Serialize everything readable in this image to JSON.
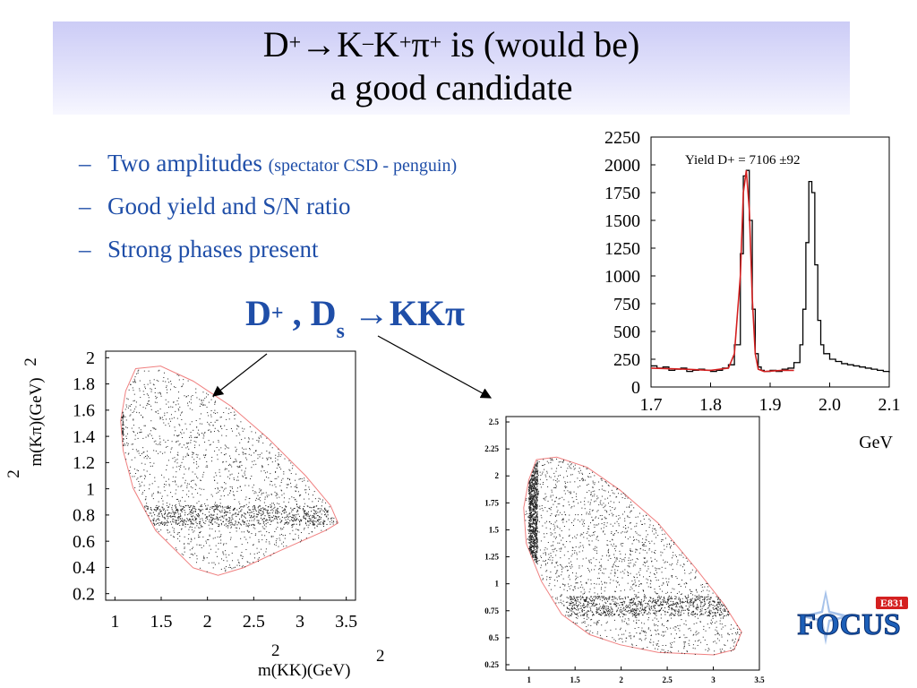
{
  "slide": {
    "title_line1_parts": [
      "D",
      "+",
      "→K",
      "–",
      "K",
      "+",
      "π",
      "+",
      " is  (would be)"
    ],
    "title_line2": "a good candidate",
    "bullets": [
      {
        "dash": "–",
        "text": "Two amplitudes ",
        "small": "(spectator CSD - penguin)"
      },
      {
        "dash": "–",
        "text": "Good yield and S/N ratio",
        "small": ""
      },
      {
        "dash": "–",
        "text": "Strong phases present",
        "small": ""
      }
    ],
    "decay_label": {
      "main1": "D",
      "sup": "+",
      "main2": " , D",
      "sub": "s",
      "main3": " →KKπ"
    }
  },
  "colors": {
    "title_band": "#d4d4f8",
    "bullet_text": "#1f4ea8",
    "fit_curve": "#d42020",
    "boundary": "#f08080",
    "logo_blue": "#1c5fb8",
    "logo_red": "#d42020"
  },
  "chart_data": [
    {
      "type": "line",
      "annotation": "Yield D+ = 7106 ±92",
      "xlabel": "GeV",
      "ylabel": "",
      "xlim": [
        1.7,
        2.1
      ],
      "ylim": [
        0,
        2250
      ],
      "xticks": [
        "1.7",
        "1.8",
        "1.9",
        "2.0",
        "2.1"
      ],
      "yticks": [
        "0",
        "250",
        "500",
        "750",
        "1000",
        "1250",
        "1500",
        "1750",
        "2000",
        "2250"
      ],
      "series": [
        {
          "kind": "histogram",
          "x": [
            1.7,
            1.71,
            1.72,
            1.73,
            1.74,
            1.75,
            1.76,
            1.77,
            1.78,
            1.79,
            1.8,
            1.81,
            1.82,
            1.83,
            1.84,
            1.85,
            1.855,
            1.86,
            1.865,
            1.87,
            1.875,
            1.88,
            1.885,
            1.89,
            1.9,
            1.91,
            1.92,
            1.93,
            1.94,
            1.95,
            1.955,
            1.96,
            1.965,
            1.97,
            1.975,
            1.98,
            1.985,
            1.99,
            2.0,
            2.01,
            2.02,
            2.03,
            2.04,
            2.05,
            2.06,
            2.07,
            2.08,
            2.09,
            2.1
          ],
          "y": [
            190,
            170,
            180,
            150,
            160,
            170,
            140,
            150,
            160,
            150,
            140,
            150,
            170,
            200,
            380,
            1200,
            1900,
            1950,
            1500,
            700,
            300,
            180,
            150,
            140,
            150,
            140,
            160,
            170,
            220,
            380,
            700,
            1300,
            1850,
            1750,
            1100,
            600,
            380,
            300,
            250,
            230,
            210,
            200,
            190,
            180,
            170,
            160,
            150,
            140,
            130
          ]
        },
        {
          "kind": "fit",
          "x": [
            1.7,
            1.76,
            1.8,
            1.83,
            1.84,
            1.85,
            1.855,
            1.86,
            1.865,
            1.87,
            1.875,
            1.88,
            1.89,
            1.92,
            1.94
          ],
          "y": [
            170,
            160,
            150,
            170,
            300,
            1000,
            1750,
            1950,
            1600,
            800,
            300,
            160,
            140,
            150,
            150
          ]
        }
      ]
    },
    {
      "type": "scatter",
      "xlabel_base": "m(KK)(GeV)",
      "ylabel_base": "m(Kπ)(GeV)",
      "sq": "2",
      "xticks": [
        "1",
        "1.5",
        "2",
        "2.5",
        "3",
        "3.5"
      ],
      "yticks": [
        "0.2",
        "0.4",
        "0.6",
        "0.8",
        "1",
        "1.2",
        "1.4",
        "1.6",
        "1.8",
        "2"
      ],
      "xlim": [
        0.9,
        3.6
      ],
      "ylim": [
        0.15,
        2.05
      ],
      "bands": [
        {
          "name": "phi band",
          "x": 1.04,
          "y_range": [
            1.1,
            1.85
          ]
        },
        {
          "name": "K* band",
          "y": 0.8,
          "x_range": [
            1.2,
            3.3
          ]
        }
      ]
    },
    {
      "type": "scatter",
      "xticks": [
        "1",
        "1.5",
        "2",
        "2.5",
        "3",
        "3.5"
      ],
      "yticks": [
        "0.25",
        "0.5",
        "0.75",
        "1",
        "1.25",
        "1.5",
        "1.75",
        "2",
        "2.25",
        "2.5"
      ],
      "xlim": [
        0.75,
        3.5
      ],
      "ylim": [
        0.2,
        2.55
      ],
      "bands": [
        {
          "name": "phi band",
          "x": 1.04,
          "y_range": [
            1.2,
            2.15
          ]
        },
        {
          "name": "K* band",
          "y": 0.8,
          "x_range": [
            1.4,
            3.3
          ]
        }
      ]
    }
  ],
  "logo": {
    "text": "FOCUS",
    "tag": "E831"
  }
}
